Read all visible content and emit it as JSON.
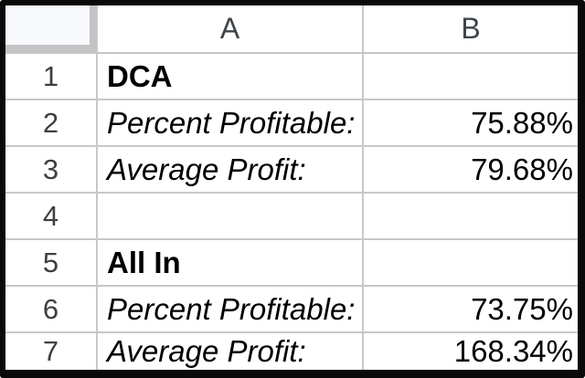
{
  "sheet": {
    "columns": [
      {
        "label": "A"
      },
      {
        "label": "B"
      }
    ],
    "rows": [
      {
        "num": "1",
        "a": "DCA",
        "b": ""
      },
      {
        "num": "2",
        "a": "Percent Profitable:",
        "b": "75.88%"
      },
      {
        "num": "3",
        "a": "Average Profit:",
        "b": "79.68%"
      },
      {
        "num": "4",
        "a": "",
        "b": ""
      },
      {
        "num": "5",
        "a": "All In",
        "b": ""
      },
      {
        "num": "6",
        "a": "Percent Profitable:",
        "b": "73.75%"
      },
      {
        "num": "7",
        "a": "Average Profit:",
        "b": "168.34%"
      }
    ],
    "colors": {
      "frame_border": "#0a0a0a",
      "gridline": "#c8c8c8",
      "corner_fill": "#f8f9fc",
      "header_text": "#3c4043",
      "cell_text": "#000000"
    }
  }
}
